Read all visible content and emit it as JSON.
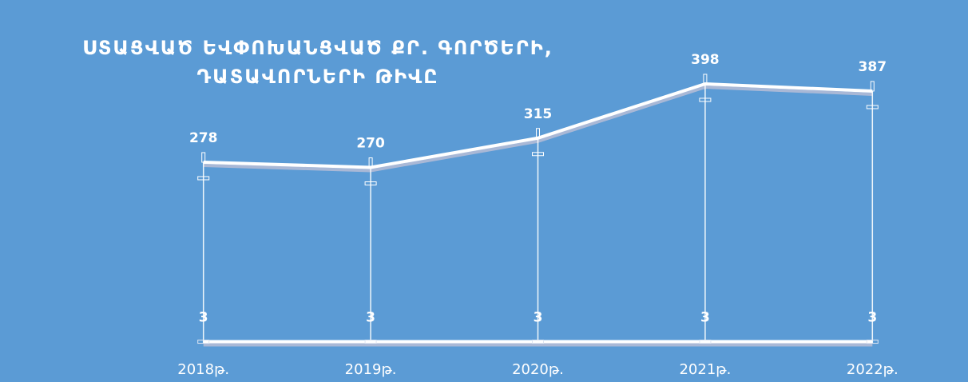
{
  "chart_data": {
    "type": "line",
    "title": "ՍՏԱՑՎԱԾ ԵՎՓՈԽԱՆՑՎԱԾ ՔՐ. ԳՈՐԾԵՐԻ, ԴԱՏԱՎՈՐՆԵՐԻ ԹԻՎԸ",
    "categories": [
      "2018թ.",
      "2019թ.",
      "2020թ.",
      "2021թ.",
      "2022թ."
    ],
    "series": [
      {
        "color": "#ffffff",
        "values": [
          278,
          270,
          315,
          398,
          387
        ]
      },
      {
        "color": "#ffffff",
        "values": [
          3,
          3,
          3,
          3,
          3
        ]
      }
    ],
    "ylim": [
      0,
      420
    ]
  }
}
